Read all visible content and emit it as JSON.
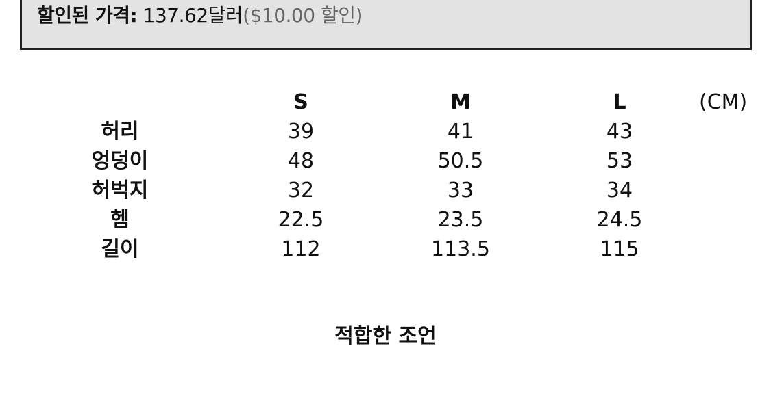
{
  "price": {
    "label": "할인된 가격:",
    "value": "137.62달러",
    "discount": "($10.00 할인)"
  },
  "size_table": {
    "unit": "(CM)",
    "columns": [
      "S",
      "M",
      "L"
    ],
    "rows": [
      {
        "label": "허리",
        "values": [
          "39",
          "41",
          "43"
        ]
      },
      {
        "label": "엉덩이",
        "values": [
          "48",
          "50.5",
          "53"
        ]
      },
      {
        "label": "허벅지",
        "values": [
          "32",
          "33",
          "34"
        ]
      },
      {
        "label": "헴",
        "values": [
          "22.5",
          "23.5",
          "24.5"
        ]
      },
      {
        "label": "길이",
        "values": [
          "112",
          "113.5",
          "115"
        ]
      }
    ]
  },
  "advice_heading": "적합한 조언"
}
